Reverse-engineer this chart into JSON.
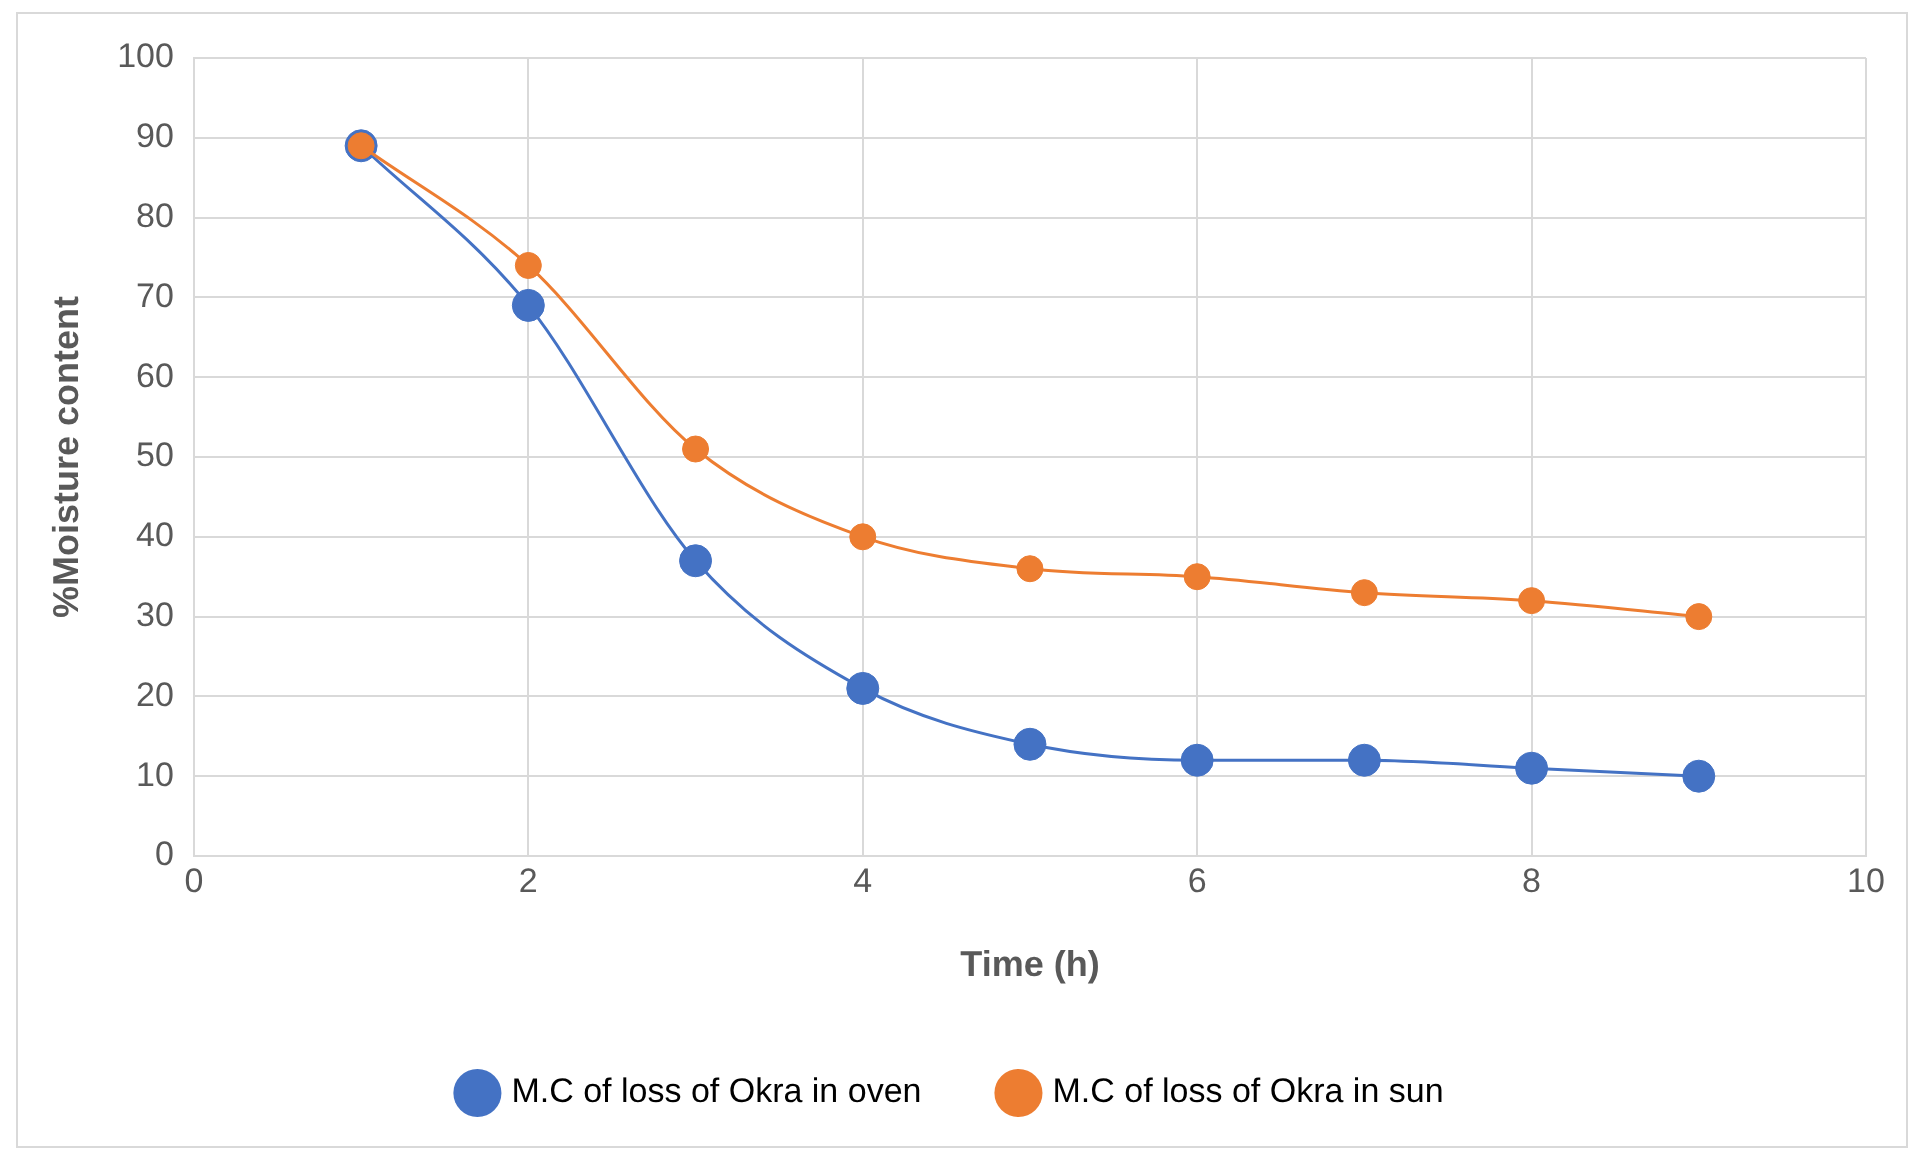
{
  "chart_data": {
    "type": "line",
    "xlabel": "Time (h)",
    "ylabel": "%Moisture content",
    "x": [
      1,
      2,
      3,
      4,
      5,
      6,
      7,
      8,
      9
    ],
    "series": [
      {
        "name": "M.C of loss of Okra in oven",
        "color": "#4472c4",
        "values": [
          89,
          69,
          37,
          21,
          14,
          12,
          12,
          11,
          10
        ]
      },
      {
        "name": "M.C of loss of Okra in sun",
        "color": "#ed7d31",
        "values": [
          89,
          74,
          51,
          40,
          36,
          35,
          33,
          32,
          30
        ]
      }
    ],
    "xlim": [
      0,
      10
    ],
    "xticks": [
      0,
      2,
      4,
      6,
      8,
      10
    ],
    "ylim": [
      0,
      100
    ],
    "yticks": [
      0,
      10,
      20,
      30,
      40,
      50,
      60,
      70,
      80,
      90,
      100
    ],
    "grid": true,
    "legend": "bottom",
    "marker": "circle",
    "line_style": "solid"
  }
}
